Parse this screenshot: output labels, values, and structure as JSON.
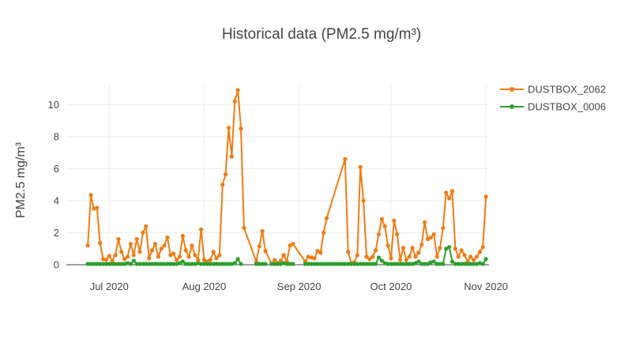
{
  "chart_data": {
    "type": "line",
    "title": "Historical data (PM2.5 mg/m³)",
    "xlabel": "",
    "ylabel": "PM2.5 mg/m³",
    "x_range": [
      "2020-06-17",
      "2020-11-02"
    ],
    "ylim": [
      0,
      11.2
    ],
    "x_ticks": [
      {
        "date": "2020-07-01",
        "label": "Jul 2020"
      },
      {
        "date": "2020-08-01",
        "label": "Aug 2020"
      },
      {
        "date": "2020-09-01",
        "label": "Sep 2020"
      },
      {
        "date": "2020-10-01",
        "label": "Oct 2020"
      },
      {
        "date": "2020-11-01",
        "label": "Nov 2020"
      }
    ],
    "y_ticks": [
      0,
      2,
      4,
      6,
      8,
      10
    ],
    "grid": true,
    "legend_position": "top-right",
    "series": [
      {
        "name": "DUSTBOX_2062",
        "color": "#ef7c14",
        "points": [
          [
            "2020-06-24",
            1.2
          ],
          [
            "2020-06-25",
            4.35
          ],
          [
            "2020-06-26",
            3.5
          ],
          [
            "2020-06-27",
            3.55
          ],
          [
            "2020-06-28",
            1.35
          ],
          [
            "2020-06-29",
            0.35
          ],
          [
            "2020-06-30",
            0.3
          ],
          [
            "2020-07-01",
            0.55
          ],
          [
            "2020-07-02",
            0.25
          ],
          [
            "2020-07-03",
            0.6
          ],
          [
            "2020-07-04",
            1.6
          ],
          [
            "2020-07-05",
            0.8
          ],
          [
            "2020-07-06",
            0.35
          ],
          [
            "2020-07-07",
            0.5
          ],
          [
            "2020-07-08",
            1.3
          ],
          [
            "2020-07-09",
            0.6
          ],
          [
            "2020-07-10",
            1.6
          ],
          [
            "2020-07-11",
            0.8
          ],
          [
            "2020-07-12",
            2.0
          ],
          [
            "2020-07-13",
            2.4
          ],
          [
            "2020-07-14",
            0.4
          ],
          [
            "2020-07-15",
            0.9
          ],
          [
            "2020-07-16",
            1.3
          ],
          [
            "2020-07-17",
            0.5
          ],
          [
            "2020-07-18",
            1.0
          ],
          [
            "2020-07-19",
            1.2
          ],
          [
            "2020-07-20",
            1.7
          ],
          [
            "2020-07-21",
            0.6
          ],
          [
            "2020-07-22",
            0.7
          ],
          [
            "2020-07-23",
            0.3
          ],
          [
            "2020-07-24",
            0.5
          ],
          [
            "2020-07-25",
            1.8
          ],
          [
            "2020-07-26",
            0.9
          ],
          [
            "2020-07-27",
            0.5
          ],
          [
            "2020-07-28",
            1.2
          ],
          [
            "2020-07-29",
            0.6
          ],
          [
            "2020-07-30",
            0.3
          ],
          [
            "2020-07-31",
            2.2
          ],
          [
            "2020-08-01",
            0.3
          ],
          [
            "2020-08-02",
            0.2
          ],
          [
            "2020-08-03",
            0.3
          ],
          [
            "2020-08-04",
            0.8
          ],
          [
            "2020-08-05",
            0.4
          ],
          [
            "2020-08-06",
            0.6
          ],
          [
            "2020-08-07",
            5.0
          ],
          [
            "2020-08-08",
            5.65
          ],
          [
            "2020-08-09",
            8.55
          ],
          [
            "2020-08-10",
            6.75
          ],
          [
            "2020-08-11",
            10.2
          ],
          [
            "2020-08-12",
            10.9
          ],
          [
            "2020-08-13",
            8.5
          ],
          [
            "2020-08-14",
            2.3
          ],
          [
            "2020-08-18",
            0.2
          ],
          [
            "2020-08-19",
            1.15
          ],
          [
            "2020-08-20",
            2.1
          ],
          [
            "2020-08-21",
            0.85
          ],
          [
            "2020-08-23",
            0.05
          ],
          [
            "2020-08-24",
            0.3
          ],
          [
            "2020-08-25",
            0.1
          ],
          [
            "2020-08-26",
            0.25
          ],
          [
            "2020-08-27",
            0.6
          ],
          [
            "2020-08-28",
            0.2
          ],
          [
            "2020-08-29",
            1.2
          ],
          [
            "2020-08-30",
            1.3
          ],
          [
            "2020-09-03",
            0.2
          ],
          [
            "2020-09-04",
            0.5
          ],
          [
            "2020-09-05",
            0.45
          ],
          [
            "2020-09-06",
            0.4
          ],
          [
            "2020-09-07",
            0.85
          ],
          [
            "2020-09-08",
            0.75
          ],
          [
            "2020-09-09",
            2.0
          ],
          [
            "2020-09-10",
            2.9
          ],
          [
            "2020-09-16",
            6.6
          ],
          [
            "2020-09-17",
            0.8
          ],
          [
            "2020-09-18",
            0.1
          ],
          [
            "2020-09-19",
            0.15
          ],
          [
            "2020-09-20",
            0.6
          ],
          [
            "2020-09-21",
            6.1
          ],
          [
            "2020-09-22",
            4.0
          ],
          [
            "2020-09-23",
            0.5
          ],
          [
            "2020-09-24",
            0.35
          ],
          [
            "2020-09-25",
            0.5
          ],
          [
            "2020-09-26",
            0.9
          ],
          [
            "2020-09-27",
            1.9
          ],
          [
            "2020-09-28",
            2.85
          ],
          [
            "2020-09-29",
            2.4
          ],
          [
            "2020-09-30",
            1.2
          ],
          [
            "2020-10-01",
            0.4
          ],
          [
            "2020-10-02",
            2.75
          ],
          [
            "2020-10-03",
            1.9
          ],
          [
            "2020-10-04",
            0.3
          ],
          [
            "2020-10-05",
            1.05
          ],
          [
            "2020-10-06",
            0.3
          ],
          [
            "2020-10-07",
            0.5
          ],
          [
            "2020-10-08",
            1.05
          ],
          [
            "2020-10-09",
            0.5
          ],
          [
            "2020-10-10",
            0.75
          ],
          [
            "2020-10-11",
            1.25
          ],
          [
            "2020-10-12",
            2.65
          ],
          [
            "2020-10-13",
            1.6
          ],
          [
            "2020-10-14",
            1.7
          ],
          [
            "2020-10-15",
            1.9
          ],
          [
            "2020-10-16",
            0.5
          ],
          [
            "2020-10-17",
            1.05
          ],
          [
            "2020-10-18",
            2.3
          ],
          [
            "2020-10-19",
            4.5
          ],
          [
            "2020-10-20",
            4.15
          ],
          [
            "2020-10-21",
            4.6
          ],
          [
            "2020-10-22",
            1.0
          ],
          [
            "2020-10-23",
            0.5
          ],
          [
            "2020-10-24",
            0.9
          ],
          [
            "2020-10-25",
            0.6
          ],
          [
            "2020-10-26",
            0.2
          ],
          [
            "2020-10-27",
            0.5
          ],
          [
            "2020-10-28",
            0.3
          ],
          [
            "2020-10-29",
            0.5
          ],
          [
            "2020-10-30",
            0.8
          ],
          [
            "2020-10-31",
            1.1
          ],
          [
            "2020-11-01",
            4.25
          ]
        ]
      },
      {
        "name": "DUSTBOX_0006",
        "color": "#2ca02c",
        "points": [
          [
            "2020-06-24",
            0.05
          ],
          [
            "2020-06-25",
            0.05
          ],
          [
            "2020-06-26",
            0.05
          ],
          [
            "2020-06-27",
            0.05
          ],
          [
            "2020-06-28",
            0.05
          ],
          [
            "2020-06-29",
            0.05
          ],
          [
            "2020-06-30",
            0.05
          ],
          [
            "2020-07-01",
            0.05
          ],
          [
            "2020-07-02",
            0.05
          ],
          [
            "2020-07-03",
            0.05
          ],
          [
            "2020-07-04",
            0.05
          ],
          [
            "2020-07-05",
            0.05
          ],
          [
            "2020-07-06",
            0.05
          ],
          [
            "2020-07-07",
            0.1
          ],
          [
            "2020-07-08",
            0.05
          ],
          [
            "2020-07-09",
            0.25
          ],
          [
            "2020-07-10",
            0.05
          ],
          [
            "2020-07-11",
            0.05
          ],
          [
            "2020-07-12",
            0.05
          ],
          [
            "2020-07-13",
            0.05
          ],
          [
            "2020-07-14",
            0.05
          ],
          [
            "2020-07-15",
            0.05
          ],
          [
            "2020-07-16",
            0.05
          ],
          [
            "2020-07-17",
            0.05
          ],
          [
            "2020-07-18",
            0.05
          ],
          [
            "2020-07-19",
            0.05
          ],
          [
            "2020-07-20",
            0.05
          ],
          [
            "2020-07-21",
            0.05
          ],
          [
            "2020-07-22",
            0.05
          ],
          [
            "2020-07-23",
            0.05
          ],
          [
            "2020-07-24",
            0.1
          ],
          [
            "2020-07-25",
            0.2
          ],
          [
            "2020-07-26",
            0.05
          ],
          [
            "2020-07-27",
            0.05
          ],
          [
            "2020-07-28",
            0.05
          ],
          [
            "2020-07-29",
            0.05
          ],
          [
            "2020-07-30",
            0.1
          ],
          [
            "2020-07-31",
            0.05
          ],
          [
            "2020-08-01",
            0.05
          ],
          [
            "2020-08-02",
            0.05
          ],
          [
            "2020-08-03",
            0.05
          ],
          [
            "2020-08-04",
            0.05
          ],
          [
            "2020-08-05",
            0.05
          ],
          [
            "2020-08-06",
            0.05
          ],
          [
            "2020-08-07",
            0.05
          ],
          [
            "2020-08-08",
            0.05
          ],
          [
            "2020-08-09",
            0.05
          ],
          [
            "2020-08-10",
            0.05
          ],
          [
            "2020-08-11",
            0.1
          ],
          [
            "2020-08-12",
            0.35
          ],
          [
            "2020-08-13",
            0.05
          ],
          [
            "2020-08-18",
            0.05
          ],
          [
            "2020-08-19",
            0.05
          ],
          [
            "2020-08-20",
            0.05
          ],
          [
            "2020-08-21",
            0.05
          ],
          [
            "2020-08-23",
            0.05
          ],
          [
            "2020-08-24",
            0.05
          ],
          [
            "2020-08-25",
            0.05
          ],
          [
            "2020-08-26",
            0.05
          ],
          [
            "2020-08-27",
            0.1
          ],
          [
            "2020-08-28",
            0.05
          ],
          [
            "2020-08-29",
            0.05
          ],
          [
            "2020-08-30",
            0.05
          ],
          [
            "2020-09-03",
            0.05
          ],
          [
            "2020-09-04",
            0.05
          ],
          [
            "2020-09-05",
            0.05
          ],
          [
            "2020-09-06",
            0.05
          ],
          [
            "2020-09-07",
            0.05
          ],
          [
            "2020-09-08",
            0.05
          ],
          [
            "2020-09-09",
            0.05
          ],
          [
            "2020-09-10",
            0.05
          ],
          [
            "2020-09-11",
            0.05
          ],
          [
            "2020-09-12",
            0.05
          ],
          [
            "2020-09-13",
            0.05
          ],
          [
            "2020-09-14",
            0.05
          ],
          [
            "2020-09-15",
            0.05
          ],
          [
            "2020-09-16",
            0.05
          ],
          [
            "2020-09-17",
            0.05
          ],
          [
            "2020-09-18",
            0.05
          ],
          [
            "2020-09-19",
            0.05
          ],
          [
            "2020-09-20",
            0.05
          ],
          [
            "2020-09-21",
            0.05
          ],
          [
            "2020-09-22",
            0.05
          ],
          [
            "2020-09-23",
            0.05
          ],
          [
            "2020-09-24",
            0.05
          ],
          [
            "2020-09-25",
            0.05
          ],
          [
            "2020-09-26",
            0.05
          ],
          [
            "2020-09-27",
            0.45
          ],
          [
            "2020-09-28",
            0.25
          ],
          [
            "2020-09-29",
            0.1
          ],
          [
            "2020-09-30",
            0.05
          ],
          [
            "2020-10-01",
            0.05
          ],
          [
            "2020-10-02",
            0.05
          ],
          [
            "2020-10-03",
            0.05
          ],
          [
            "2020-10-04",
            0.05
          ],
          [
            "2020-10-05",
            0.05
          ],
          [
            "2020-10-06",
            0.05
          ],
          [
            "2020-10-07",
            0.05
          ],
          [
            "2020-10-08",
            0.05
          ],
          [
            "2020-10-09",
            0.1
          ],
          [
            "2020-10-10",
            0.2
          ],
          [
            "2020-10-11",
            0.05
          ],
          [
            "2020-10-12",
            0.05
          ],
          [
            "2020-10-13",
            0.05
          ],
          [
            "2020-10-14",
            0.15
          ],
          [
            "2020-10-15",
            0.2
          ],
          [
            "2020-10-16",
            0.05
          ],
          [
            "2020-10-17",
            0.05
          ],
          [
            "2020-10-18",
            0.05
          ],
          [
            "2020-10-19",
            1.0
          ],
          [
            "2020-10-20",
            1.1
          ],
          [
            "2020-10-21",
            0.2
          ],
          [
            "2020-10-22",
            0.05
          ],
          [
            "2020-10-23",
            0.05
          ],
          [
            "2020-10-24",
            0.05
          ],
          [
            "2020-10-25",
            0.05
          ],
          [
            "2020-10-26",
            0.05
          ],
          [
            "2020-10-27",
            0.05
          ],
          [
            "2020-10-28",
            0.05
          ],
          [
            "2020-10-29",
            0.05
          ],
          [
            "2020-10-30",
            0.1
          ],
          [
            "2020-10-31",
            0.05
          ],
          [
            "2020-11-01",
            0.35
          ]
        ]
      }
    ]
  }
}
